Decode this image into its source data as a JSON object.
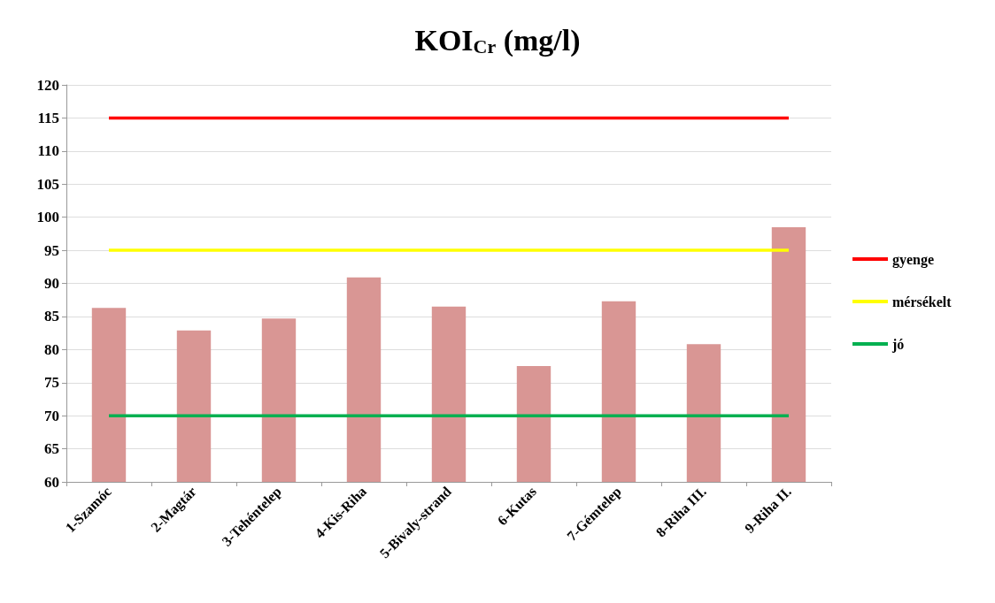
{
  "chart_data": {
    "type": "bar",
    "title": "KOI$_{Cr}$ (mg/l)",
    "categories": [
      "1-Szamóc",
      "2-Magtár",
      "3-Tehéntelep",
      "4-Kis-Riha",
      "5-Bivaly-strand",
      "6-Kutas",
      "7-Gémtelep",
      "8-Riha III.",
      "9-Riha II."
    ],
    "series": [
      {
        "color": "#d99694",
        "values": [
          86.3,
          82.9,
          84.7,
          90.9,
          86.5,
          77.5,
          87.3,
          80.8,
          98.5
        ]
      },
      {
        "type": "line",
        "name": "gyenge",
        "color": "#ff0000",
        "values": [
          115,
          115,
          115,
          115,
          115,
          115,
          115,
          115,
          115
        ]
      },
      {
        "type": "line",
        "name": "mérsékelt",
        "color": "#ffff00",
        "values": [
          95,
          95,
          95,
          95,
          95,
          95,
          95,
          95,
          95
        ]
      },
      {
        "type": "line",
        "name": "jó",
        "color": "#00b050",
        "values": [
          70,
          70,
          70,
          70,
          70,
          70,
          70,
          70,
          70
        ]
      }
    ],
    "ylim": [
      60,
      120
    ],
    "yticks": [
      60,
      65,
      70,
      75,
      80,
      85,
      90,
      95,
      100,
      105,
      110,
      115,
      120
    ],
    "grid": "y",
    "legend": "right",
    "marker": "none",
    "line_style": "solid"
  }
}
